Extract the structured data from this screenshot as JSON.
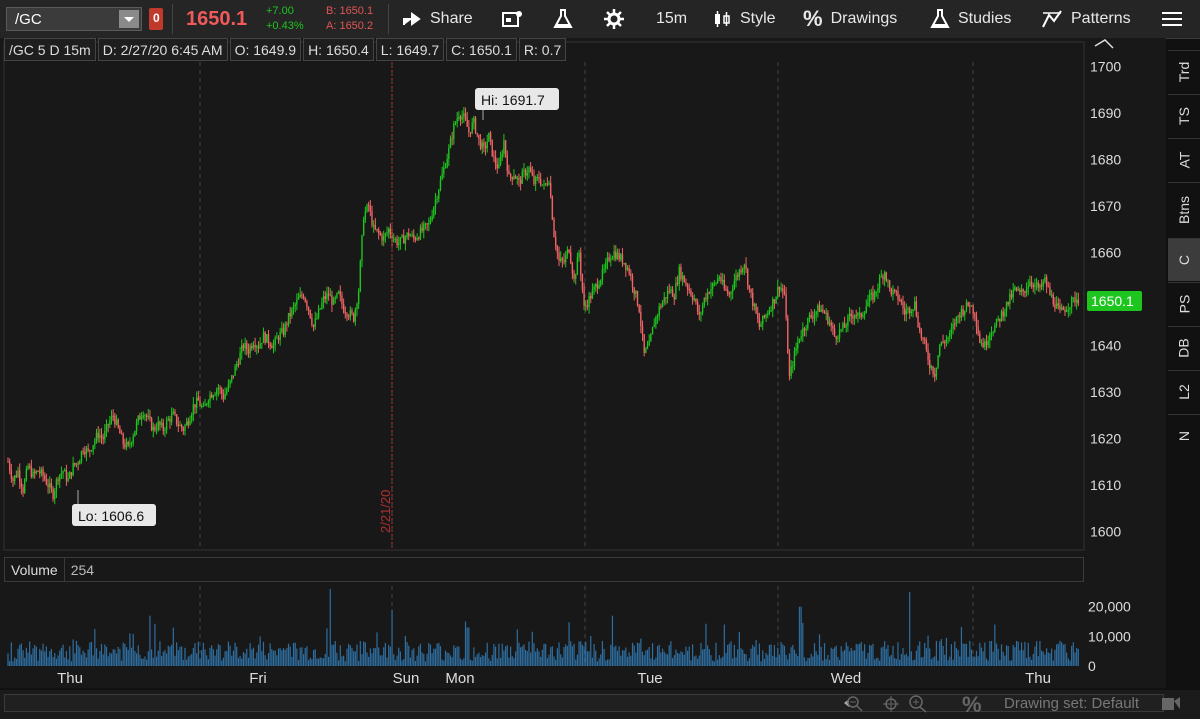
{
  "toolbar": {
    "symbol": "/GC",
    "alert_count": "0",
    "last_price": "1650.1",
    "net_change": "+7.00",
    "pct_change": "+0.43%",
    "bid": "B: 1650.1",
    "ask": "A: 1650.2",
    "share": "Share",
    "timeframe": "15m",
    "style": "Style",
    "drawings": "Drawings",
    "studies": "Studies",
    "patterns": "Patterns"
  },
  "info": {
    "chart_title": "/GC 5 D 15m",
    "date": "D: 2/27/20 6:45 AM",
    "open": "O: 1649.9",
    "high": "H: 1650.4",
    "low": "L: 1649.7",
    "close": "C: 1650.1",
    "range": "R: 0.7"
  },
  "volume_panel": {
    "label": "Volume",
    "value": "254"
  },
  "side_tabs": [
    "Trd",
    "TS",
    "AT",
    "Btns",
    "C",
    "PS",
    "DB",
    "L2",
    "N"
  ],
  "drawing_set": "Drawing set: Default",
  "chart_data": {
    "type": "candlestick",
    "symbol": "/GC",
    "interval": "15m",
    "price_axis": {
      "min": 1596,
      "max": 1704,
      "ticks": [
        1600,
        1610,
        1620,
        1630,
        1640,
        1650,
        1660,
        1670,
        1680,
        1690,
        1700
      ]
    },
    "volume_axis": {
      "min": 0,
      "max": 27000,
      "ticks": [
        "0",
        "10,000",
        "20,000"
      ],
      "tick_values": [
        0,
        10000,
        20000
      ]
    },
    "x_labels": [
      "Thu",
      "Fri",
      "Sun",
      "Mon",
      "Tue",
      "Wed",
      "Thu"
    ],
    "date_marker": "2/21/20",
    "hi_label": "Hi: 1691.7",
    "lo_label": "Lo: 1606.6",
    "current_price_label": "1650.1",
    "current_price": 1650.1,
    "high": 1691.7,
    "low": 1606.6,
    "up_color": "#1ec51e",
    "down_color": "#f06464",
    "volume_color": "#2e6ea0",
    "path": [
      1615,
      1611,
      1613,
      1609,
      1614,
      1612,
      1613,
      1612,
      1610,
      1608,
      1612,
      1613,
      1611,
      1614,
      1615,
      1618,
      1617,
      1619,
      1621,
      1620,
      1623,
      1625,
      1622,
      1619,
      1618,
      1621,
      1624,
      1626,
      1624,
      1622,
      1623,
      1622,
      1624,
      1625,
      1623,
      1622,
      1624,
      1627,
      1628,
      1626,
      1629,
      1630,
      1631,
      1629,
      1631,
      1634,
      1637,
      1640,
      1639,
      1641,
      1640,
      1642,
      1641,
      1640,
      1642,
      1643,
      1646,
      1648,
      1650,
      1651,
      1648,
      1644,
      1647,
      1650,
      1651,
      1649,
      1651,
      1648,
      1647,
      1646,
      1652,
      1668,
      1670,
      1665,
      1664,
      1663,
      1665,
      1663,
      1662,
      1663,
      1664,
      1663,
      1664,
      1665,
      1666,
      1670,
      1674,
      1678,
      1682,
      1687,
      1690,
      1689,
      1686,
      1688,
      1684,
      1682,
      1685,
      1680,
      1678,
      1684,
      1676,
      1677,
      1675,
      1677,
      1678,
      1675,
      1676,
      1674,
      1676,
      1664,
      1658,
      1658,
      1661,
      1654,
      1660,
      1648,
      1650,
      1652,
      1654,
      1656,
      1659,
      1660,
      1659,
      1658,
      1656,
      1652,
      1648,
      1638,
      1640,
      1645,
      1648,
      1650,
      1652,
      1651,
      1656,
      1654,
      1652,
      1650,
      1646,
      1650,
      1652,
      1653,
      1655,
      1652,
      1651,
      1654,
      1656,
      1658,
      1652,
      1648,
      1644,
      1646,
      1648,
      1650,
      1653,
      1651,
      1633,
      1638,
      1642,
      1644,
      1646,
      1647,
      1648,
      1647,
      1645,
      1642,
      1643,
      1644,
      1646,
      1647,
      1646,
      1648,
      1650,
      1651,
      1654,
      1656,
      1652,
      1651,
      1650,
      1647,
      1648,
      1649,
      1643,
      1640,
      1636,
      1634,
      1640,
      1641,
      1642,
      1645,
      1647,
      1648,
      1649,
      1647,
      1641,
      1640,
      1643,
      1644,
      1646,
      1648,
      1650,
      1652,
      1651,
      1652,
      1654,
      1653,
      1652,
      1654,
      1651,
      1649,
      1647,
      1648,
      1649,
      1650
    ]
  }
}
